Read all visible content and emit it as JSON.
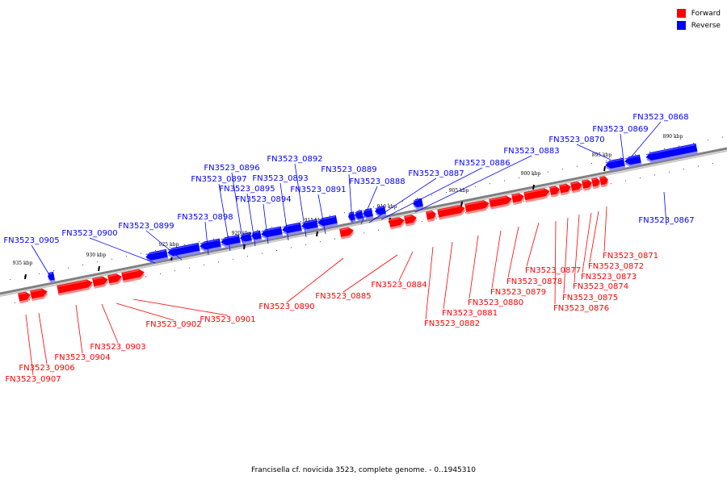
{
  "caption": "Francisella cf. novicida 3523, complete genome. - 0..1945310",
  "legend": [
    {
      "label": "Forward",
      "color": "#ff0000"
    },
    {
      "label": "Reverse",
      "color": "#0000ff"
    }
  ],
  "colors": {
    "forward": "#ff0000",
    "reverse": "#0000ff",
    "backbone": "#808080"
  },
  "ticks": [
    "935 kbp",
    "930 kbp",
    "925 kbp",
    "920 kbp",
    "915 kbp",
    "910 kbp",
    "905 kbp",
    "900 kbp",
    "895 kbp",
    "890 kbp"
  ],
  "genes": [
    {
      "id": "FN3523_0867",
      "strand": "reverse"
    },
    {
      "id": "FN3523_0868",
      "strand": "reverse"
    },
    {
      "id": "FN3523_0869",
      "strand": "reverse"
    },
    {
      "id": "FN3523_0870",
      "strand": "reverse"
    },
    {
      "id": "FN3523_0871",
      "strand": "forward"
    },
    {
      "id": "FN3523_0872",
      "strand": "forward"
    },
    {
      "id": "FN3523_0873",
      "strand": "forward"
    },
    {
      "id": "FN3523_0874",
      "strand": "forward"
    },
    {
      "id": "FN3523_0875",
      "strand": "forward"
    },
    {
      "id": "FN3523_0876",
      "strand": "forward"
    },
    {
      "id": "FN3523_0877",
      "strand": "forward"
    },
    {
      "id": "FN3523_0878",
      "strand": "forward"
    },
    {
      "id": "FN3523_0879",
      "strand": "forward"
    },
    {
      "id": "FN3523_0880",
      "strand": "forward"
    },
    {
      "id": "FN3523_0881",
      "strand": "forward"
    },
    {
      "id": "FN3523_0882",
      "strand": "forward"
    },
    {
      "id": "FN3523_0883",
      "strand": "reverse"
    },
    {
      "id": "FN3523_0884",
      "strand": "forward"
    },
    {
      "id": "FN3523_0885",
      "strand": "forward"
    },
    {
      "id": "FN3523_0886",
      "strand": "reverse"
    },
    {
      "id": "FN3523_0887",
      "strand": "reverse"
    },
    {
      "id": "FN3523_0888",
      "strand": "reverse"
    },
    {
      "id": "FN3523_0889",
      "strand": "reverse"
    },
    {
      "id": "FN3523_0890",
      "strand": "forward"
    },
    {
      "id": "FN3523_0891",
      "strand": "reverse"
    },
    {
      "id": "FN3523_0892",
      "strand": "reverse"
    },
    {
      "id": "FN3523_0893",
      "strand": "reverse"
    },
    {
      "id": "FN3523_0894",
      "strand": "reverse"
    },
    {
      "id": "FN3523_0895",
      "strand": "reverse"
    },
    {
      "id": "FN3523_0896",
      "strand": "reverse"
    },
    {
      "id": "FN3523_0897",
      "strand": "reverse"
    },
    {
      "id": "FN3523_0898",
      "strand": "reverse"
    },
    {
      "id": "FN3523_0899",
      "strand": "reverse"
    },
    {
      "id": "FN3523_0900",
      "strand": "reverse"
    },
    {
      "id": "FN3523_0901",
      "strand": "forward"
    },
    {
      "id": "FN3523_0902",
      "strand": "forward"
    },
    {
      "id": "FN3523_0903",
      "strand": "forward"
    },
    {
      "id": "FN3523_0904",
      "strand": "forward"
    },
    {
      "id": "FN3523_0905",
      "strand": "reverse"
    },
    {
      "id": "FN3523_0906",
      "strand": "forward"
    },
    {
      "id": "FN3523_0907",
      "strand": "forward"
    }
  ]
}
